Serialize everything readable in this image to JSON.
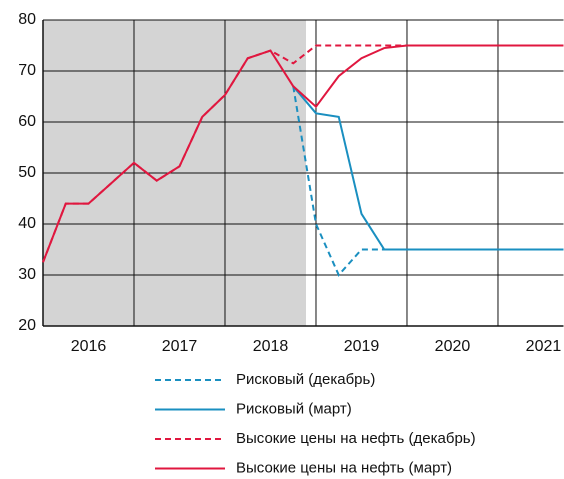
{
  "chart_data": {
    "type": "line",
    "x": [
      2016,
      2016.25,
      2016.5,
      2016.75,
      2017,
      2017.25,
      2017.5,
      2017.75,
      2018,
      2018.25,
      2018.5,
      2018.75,
      2019,
      2019.25,
      2019.5,
      2019.75,
      2020,
      2020.25,
      2020.5,
      2020.75,
      2021,
      2021.25,
      2021.5,
      2021.72
    ],
    "series": [
      {
        "name": "Рисковый (декабрь)",
        "color": "#1a8fc0",
        "dashed": true,
        "values": [
          null,
          null,
          null,
          null,
          null,
          null,
          null,
          null,
          null,
          null,
          null,
          67,
          40,
          30,
          35,
          35,
          35,
          35,
          35,
          35,
          35,
          35,
          35,
          35
        ]
      },
      {
        "name": "Рисковый (март)",
        "color": "#1a8fc0",
        "dashed": false,
        "values": [
          null,
          null,
          null,
          null,
          null,
          null,
          null,
          null,
          null,
          null,
          null,
          67,
          61.7,
          61,
          42,
          35,
          35,
          35,
          35,
          35,
          35,
          35,
          35,
          35
        ]
      },
      {
        "name": "Высокие цены на нефть (декабрь)",
        "color": "#e0173f",
        "dashed": true,
        "values": [
          32.5,
          44,
          44,
          48,
          52,
          48.5,
          51.3,
          61,
          65.3,
          72.5,
          74,
          71.5,
          75,
          75,
          75,
          75,
          75,
          75,
          75,
          75,
          75,
          75,
          75,
          75
        ]
      },
      {
        "name": "Высокие цены на нефть (март)",
        "color": "#e0173f",
        "dashed": false,
        "values": [
          32.5,
          44,
          44,
          48,
          52,
          48.5,
          51.3,
          61,
          65.3,
          72.5,
          74,
          67,
          63,
          69,
          72.5,
          74.5,
          75,
          75,
          75,
          75,
          75,
          75,
          75,
          75
        ]
      }
    ],
    "xlim": [
      2016,
      2021.72
    ],
    "xticks": [
      {
        "value": 2016.5,
        "label": "2016"
      },
      {
        "value": 2017.5,
        "label": "2017"
      },
      {
        "value": 2018.5,
        "label": "2018"
      },
      {
        "value": 2019.5,
        "label": "2019"
      },
      {
        "value": 2020.5,
        "label": "2020"
      },
      {
        "value": 2021.5,
        "label": "2021"
      }
    ],
    "xgrid": [
      2017,
      2018,
      2019,
      2020,
      2021
    ],
    "shaded_xlim": [
      2016,
      2018.89
    ],
    "shade_color": "#d4d4d4",
    "ylim": [
      20,
      80
    ],
    "yticks": [
      20,
      30,
      40,
      50,
      60,
      70,
      80
    ],
    "grid": true
  }
}
